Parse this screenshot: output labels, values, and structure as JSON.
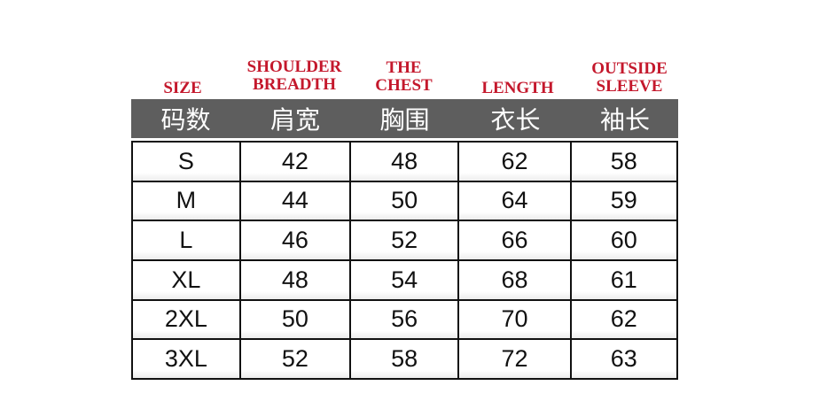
{
  "headers_en": [
    "SIZE",
    "SHOULDER BREADTH",
    "THE CHEST",
    "LENGTH",
    "OUTSIDE SLEEVE"
  ],
  "headers_zh": [
    "码数",
    "肩宽",
    "胸围",
    "衣长",
    "袖长"
  ],
  "rows": [
    [
      "S",
      "42",
      "48",
      "62",
      "58"
    ],
    [
      "M",
      "44",
      "50",
      "64",
      "59"
    ],
    [
      "L",
      "46",
      "52",
      "66",
      "60"
    ],
    [
      "XL",
      "48",
      "54",
      "68",
      "61"
    ],
    [
      "2XL",
      "50",
      "56",
      "70",
      "62"
    ],
    [
      "3XL",
      "52",
      "58",
      "72",
      "63"
    ]
  ],
  "colors": {
    "header_text": "#c4182c",
    "band": "#5e5e5e"
  }
}
